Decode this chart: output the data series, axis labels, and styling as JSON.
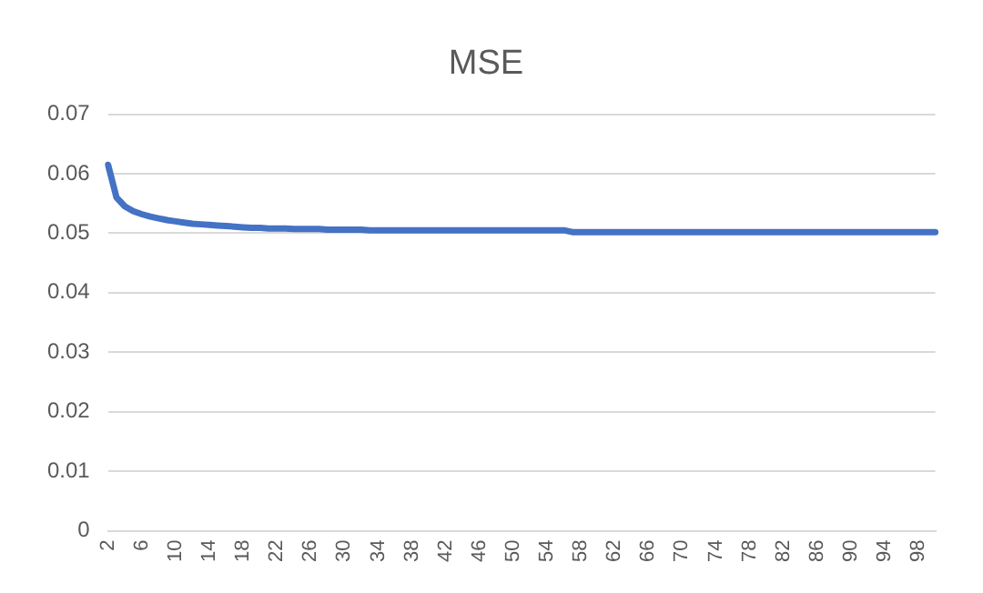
{
  "chart_data": {
    "type": "line",
    "title": "MSE",
    "categories": [
      "2",
      null,
      null,
      null,
      "6",
      null,
      null,
      null,
      "10",
      null,
      null,
      null,
      "14",
      null,
      null,
      null,
      "18",
      null,
      null,
      null,
      "22",
      null,
      null,
      null,
      "26",
      null,
      null,
      null,
      "30",
      null,
      null,
      null,
      "34",
      null,
      null,
      null,
      "38",
      null,
      null,
      null,
      "42",
      null,
      null,
      null,
      "46",
      null,
      null,
      null,
      "50",
      null,
      null,
      null,
      "54",
      null,
      null,
      null,
      "58",
      null,
      null,
      null,
      "62",
      null,
      null,
      null,
      "66",
      null,
      null,
      null,
      "70",
      null,
      null,
      null,
      "74",
      null,
      null,
      null,
      "78",
      null,
      null,
      null,
      "82",
      null,
      null,
      null,
      "86",
      null,
      null,
      null,
      "90",
      null,
      null,
      null,
      "94",
      null,
      null,
      null,
      "98",
      null,
      null
    ],
    "series": [
      {
        "color": "#4472c4",
        "values": [
          0.0615,
          0.056,
          0.0545,
          0.0537,
          0.0532,
          0.0528,
          0.0525,
          0.0522,
          0.052,
          0.0518,
          0.0516,
          0.0515,
          0.0514,
          0.0513,
          0.0512,
          0.0511,
          0.051,
          0.0509,
          0.0509,
          0.0508,
          0.0508,
          0.0508,
          0.0507,
          0.0507,
          0.0507,
          0.0507,
          0.0506,
          0.0506,
          0.0506,
          0.0506,
          0.0506,
          0.0505,
          0.0505,
          0.0505,
          0.0505,
          0.0505,
          0.0505,
          0.0505,
          0.0505,
          0.0505,
          0.0505,
          0.0505,
          0.0505,
          0.0505,
          0.0505,
          0.0505,
          0.0505,
          0.0505,
          0.0505,
          0.0505,
          0.0505,
          0.0505,
          0.0505,
          0.0505,
          0.0505,
          0.0502,
          0.0502,
          0.0502,
          0.0502,
          0.0502,
          0.0502,
          0.0502,
          0.0502,
          0.0502,
          0.0502,
          0.0502,
          0.0502,
          0.0502,
          0.0502,
          0.0502,
          0.0502,
          0.0502,
          0.0502,
          0.0502,
          0.0502,
          0.0502,
          0.0502,
          0.0502,
          0.0502,
          0.0502,
          0.0502,
          0.0502,
          0.0502,
          0.0502,
          0.0502,
          0.0502,
          0.0502,
          0.0502,
          0.0502,
          0.0502,
          0.0502,
          0.0502,
          0.0502,
          0.0502,
          0.0502,
          0.0502,
          0.0502,
          0.0502,
          0.0502
        ]
      }
    ],
    "ylim": [
      0,
      0.07
    ],
    "yticks": [
      0,
      0.01,
      0.02,
      0.03,
      0.04,
      0.05,
      0.06,
      0.07
    ],
    "grid": "y",
    "legend": false,
    "marker": "none"
  }
}
